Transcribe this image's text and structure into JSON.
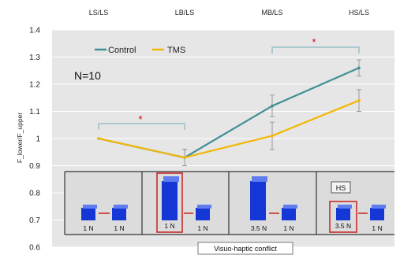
{
  "chart_data": {
    "type": "line",
    "conditions": [
      "LS/LS",
      "LB/LS",
      "MB/LS",
      "HS/LS"
    ],
    "ylabel": "F_lower/F_upper",
    "yticks": [
      "1.4",
      "1.3",
      "1.2",
      "1.1",
      "1",
      "0.9",
      "0.8",
      "0.7",
      "0.6"
    ],
    "ylim": [
      0.6,
      1.4
    ],
    "legend": [
      "Control",
      "TMS"
    ],
    "annotation": "N=10",
    "significance": "*",
    "series": [
      {
        "name": "Control",
        "color": "#3f8f95",
        "values": [
          1.0,
          0.93,
          1.12,
          1.26
        ],
        "errors": [
          0.0,
          0.03,
          0.04,
          0.03
        ]
      },
      {
        "name": "TMS",
        "color": "#f2b705",
        "values": [
          1.0,
          0.93,
          1.01,
          1.14
        ],
        "errors": [
          0.0,
          0.03,
          0.05,
          0.04
        ]
      }
    ],
    "panels": [
      {
        "left_force": "1 N",
        "right_force": "1 N",
        "hs_label": ""
      },
      {
        "left_force": "1 N",
        "right_force": "1 N",
        "hs_label": ""
      },
      {
        "left_force": "3.5 N",
        "right_force": "1 N",
        "hs_label": ""
      },
      {
        "left_force": "3.5 N",
        "right_force": "1 N",
        "hs_label": "HS"
      }
    ],
    "conflict_label": "Visuo-haptic conflict"
  }
}
